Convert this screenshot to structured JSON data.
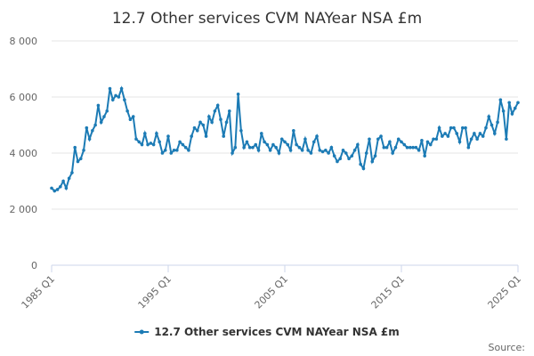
{
  "chart_data": {
    "type": "line",
    "title": "12.7 Other services CVM NAYear NSA £m",
    "source": "Source:",
    "categories": [
      "1985 Q1",
      null,
      null,
      null,
      null,
      null,
      null,
      null,
      null,
      null,
      null,
      null,
      null,
      null,
      null,
      null,
      null,
      null,
      null,
      null,
      null,
      null,
      null,
      null,
      null,
      null,
      null,
      null,
      null,
      null,
      null,
      null,
      null,
      null,
      null,
      null,
      null,
      null,
      null,
      null,
      "1995 Q1",
      null,
      null,
      null,
      null,
      null,
      null,
      null,
      null,
      null,
      null,
      null,
      null,
      null,
      null,
      null,
      null,
      null,
      null,
      null,
      null,
      null,
      null,
      null,
      null,
      null,
      null,
      null,
      null,
      null,
      null,
      null,
      null,
      null,
      null,
      null,
      null,
      null,
      null,
      null,
      "2005 Q1",
      null,
      null,
      null,
      null,
      null,
      null,
      null,
      null,
      null,
      null,
      null,
      null,
      null,
      null,
      null,
      null,
      null,
      null,
      null,
      null,
      null,
      null,
      null,
      null,
      null,
      null,
      null,
      null,
      null,
      null,
      null,
      null,
      null,
      null,
      null,
      null,
      null,
      null,
      null,
      "2015 Q1",
      null,
      null,
      null,
      null,
      null,
      null,
      null,
      null,
      null,
      null,
      null,
      null,
      null,
      null,
      null,
      null,
      null,
      null,
      null,
      null,
      null,
      null,
      null,
      null,
      null,
      null,
      null,
      null,
      null,
      null,
      null,
      null,
      null,
      null,
      null,
      null,
      null,
      null,
      null,
      "2025 Q1"
    ],
    "series": [
      {
        "name": "12.7 Other services CVM NAYear NSA £m",
        "color": "#1c7bb5",
        "values": [
          2750,
          2650,
          2700,
          2800,
          3000,
          2750,
          3100,
          3300,
          4200,
          3700,
          3800,
          4100,
          4900,
          4500,
          4800,
          5000,
          5700,
          5100,
          5300,
          5500,
          6300,
          5900,
          6050,
          6000,
          6300,
          5900,
          5500,
          5200,
          5300,
          4500,
          4400,
          4300,
          4700,
          4300,
          4350,
          4300,
          4700,
          4400,
          4000,
          4100,
          4600,
          4000,
          4100,
          4100,
          4400,
          4300,
          4200,
          4100,
          4600,
          4900,
          4800,
          5100,
          5000,
          4600,
          5300,
          5100,
          5500,
          5700,
          5200,
          4600,
          5100,
          5500,
          4000,
          4200,
          6100,
          4800,
          4200,
          4400,
          4200,
          4200,
          4300,
          4100,
          4700,
          4400,
          4300,
          4100,
          4300,
          4200,
          4000,
          4500,
          4400,
          4300,
          4100,
          4800,
          4300,
          4200,
          4100,
          4500,
          4100,
          4000,
          4400,
          4600,
          4100,
          4050,
          4100,
          4000,
          4200,
          3900,
          3700,
          3800,
          4100,
          4000,
          3800,
          3900,
          4100,
          4300,
          3600,
          3450,
          4000,
          4500,
          3700,
          3900,
          4500,
          4600,
          4200,
          4200,
          4400,
          4000,
          4200,
          4500,
          4400,
          4300,
          4200,
          4200,
          4200,
          4200,
          4100,
          4450,
          3900,
          4400,
          4300,
          4500,
          4500,
          4900,
          4600,
          4700,
          4600,
          4900,
          4900,
          4700,
          4400,
          4900,
          4900,
          4200,
          4500,
          4700,
          4500,
          4700,
          4600,
          4900,
          5300,
          5000,
          4700,
          5100,
          5900,
          5500,
          4500,
          5800,
          5400,
          5600,
          5800
        ]
      }
    ],
    "ylim": [
      0,
      8000
    ],
    "yticks": [
      0,
      {
        "value": 2000,
        "label": "2 000"
      },
      {
        "value": 4000,
        "label": "4 000"
      },
      {
        "value": 6000,
        "label": "6 000"
      },
      {
        "value": 8000,
        "label": "8 000"
      }
    ],
    "grid": true,
    "legend": "bottom"
  }
}
